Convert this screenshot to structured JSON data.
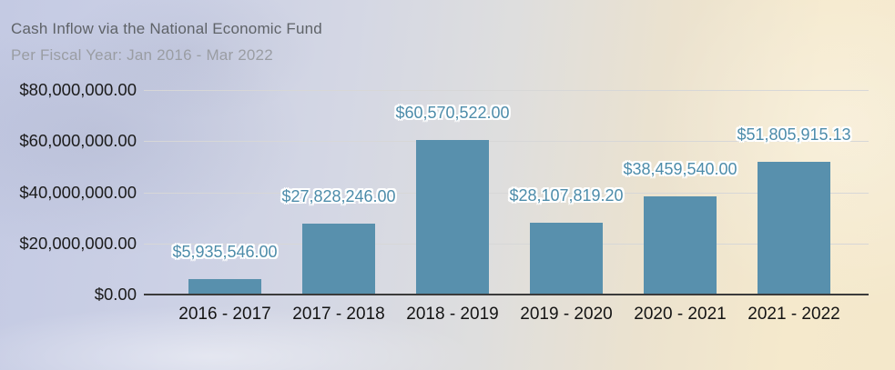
{
  "chart_data": {
    "type": "bar",
    "title": "Cash Inflow via the National Economic Fund",
    "subtitle": "Per Fiscal Year: Jan 2016 - Mar 2022",
    "categories": [
      "2016 - 2017",
      "2017 - 2018",
      "2018 - 2019",
      "2019 - 2020",
      "2020 - 2021",
      "2021 - 2022"
    ],
    "values": [
      5935546.0,
      27828246.0,
      60570522.0,
      28107819.2,
      38459540.0,
      51805915.13
    ],
    "value_labels": [
      "$5,935,546.00",
      "$27,828,246.00",
      "$60,570,522.00",
      "$28,107,819.20",
      "$38,459,540.00",
      "$51,805,915.13"
    ],
    "y_axis": {
      "tick_labels": [
        "$80,000,000.00",
        "$60,000,000.00",
        "$40,000,000.00",
        "$20,000,000.00",
        "$0.00"
      ],
      "tick_values": [
        80000000,
        60000000,
        40000000,
        20000000,
        0
      ],
      "min": 0,
      "max": 80000000
    },
    "grid": true,
    "legend": "none",
    "colors": {
      "bar": "#5890ad",
      "value_label": "#4d8caa",
      "axis_text": "#1b1b1b",
      "title_text": "#5f6368",
      "subtitle_text": "#9a9da3",
      "gridline": "#d7d7d7",
      "axis_line": "#3b3b3b"
    }
  }
}
